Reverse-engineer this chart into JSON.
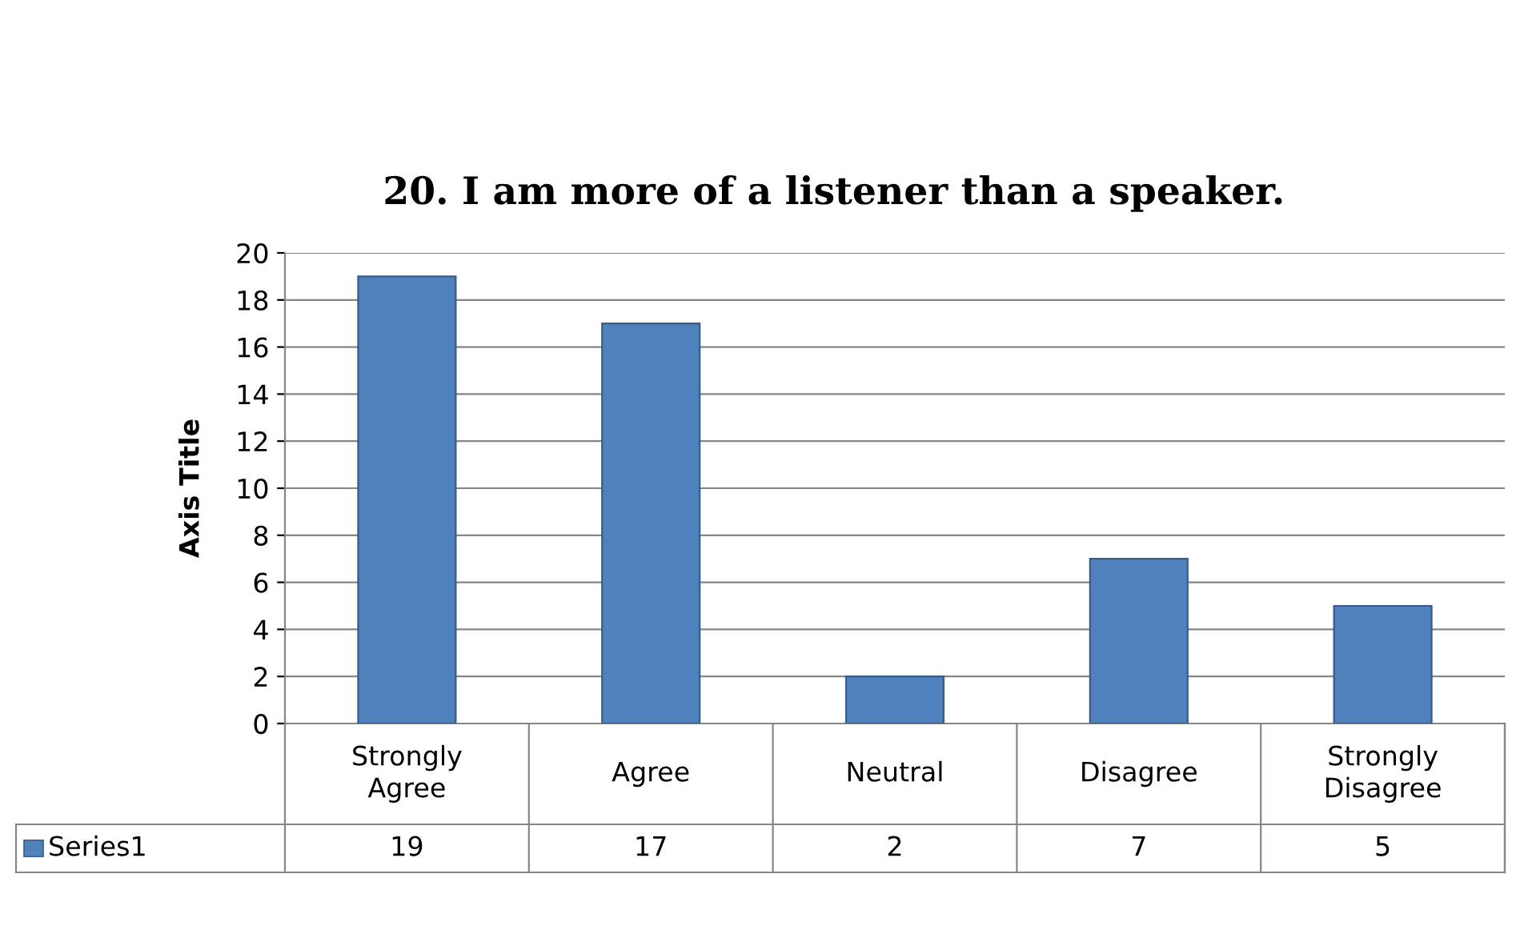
{
  "chart_data": {
    "type": "bar",
    "title": "20. I am more of a listener than a speaker.",
    "ylabel": "Axis Title",
    "categories": [
      "Strongly Agree",
      "Agree",
      "Neutral",
      "Disagree",
      "Strongly Disagree"
    ],
    "series": [
      {
        "name": "Series1",
        "color": "#4f81bd",
        "values": [
          19,
          17,
          2,
          7,
          5
        ]
      }
    ],
    "ylim": [
      0,
      20
    ],
    "yticks": [
      0,
      2,
      4,
      6,
      8,
      10,
      12,
      14,
      16,
      18,
      20
    ],
    "grid": "y",
    "data_labels": true,
    "legend": "bottom"
  }
}
